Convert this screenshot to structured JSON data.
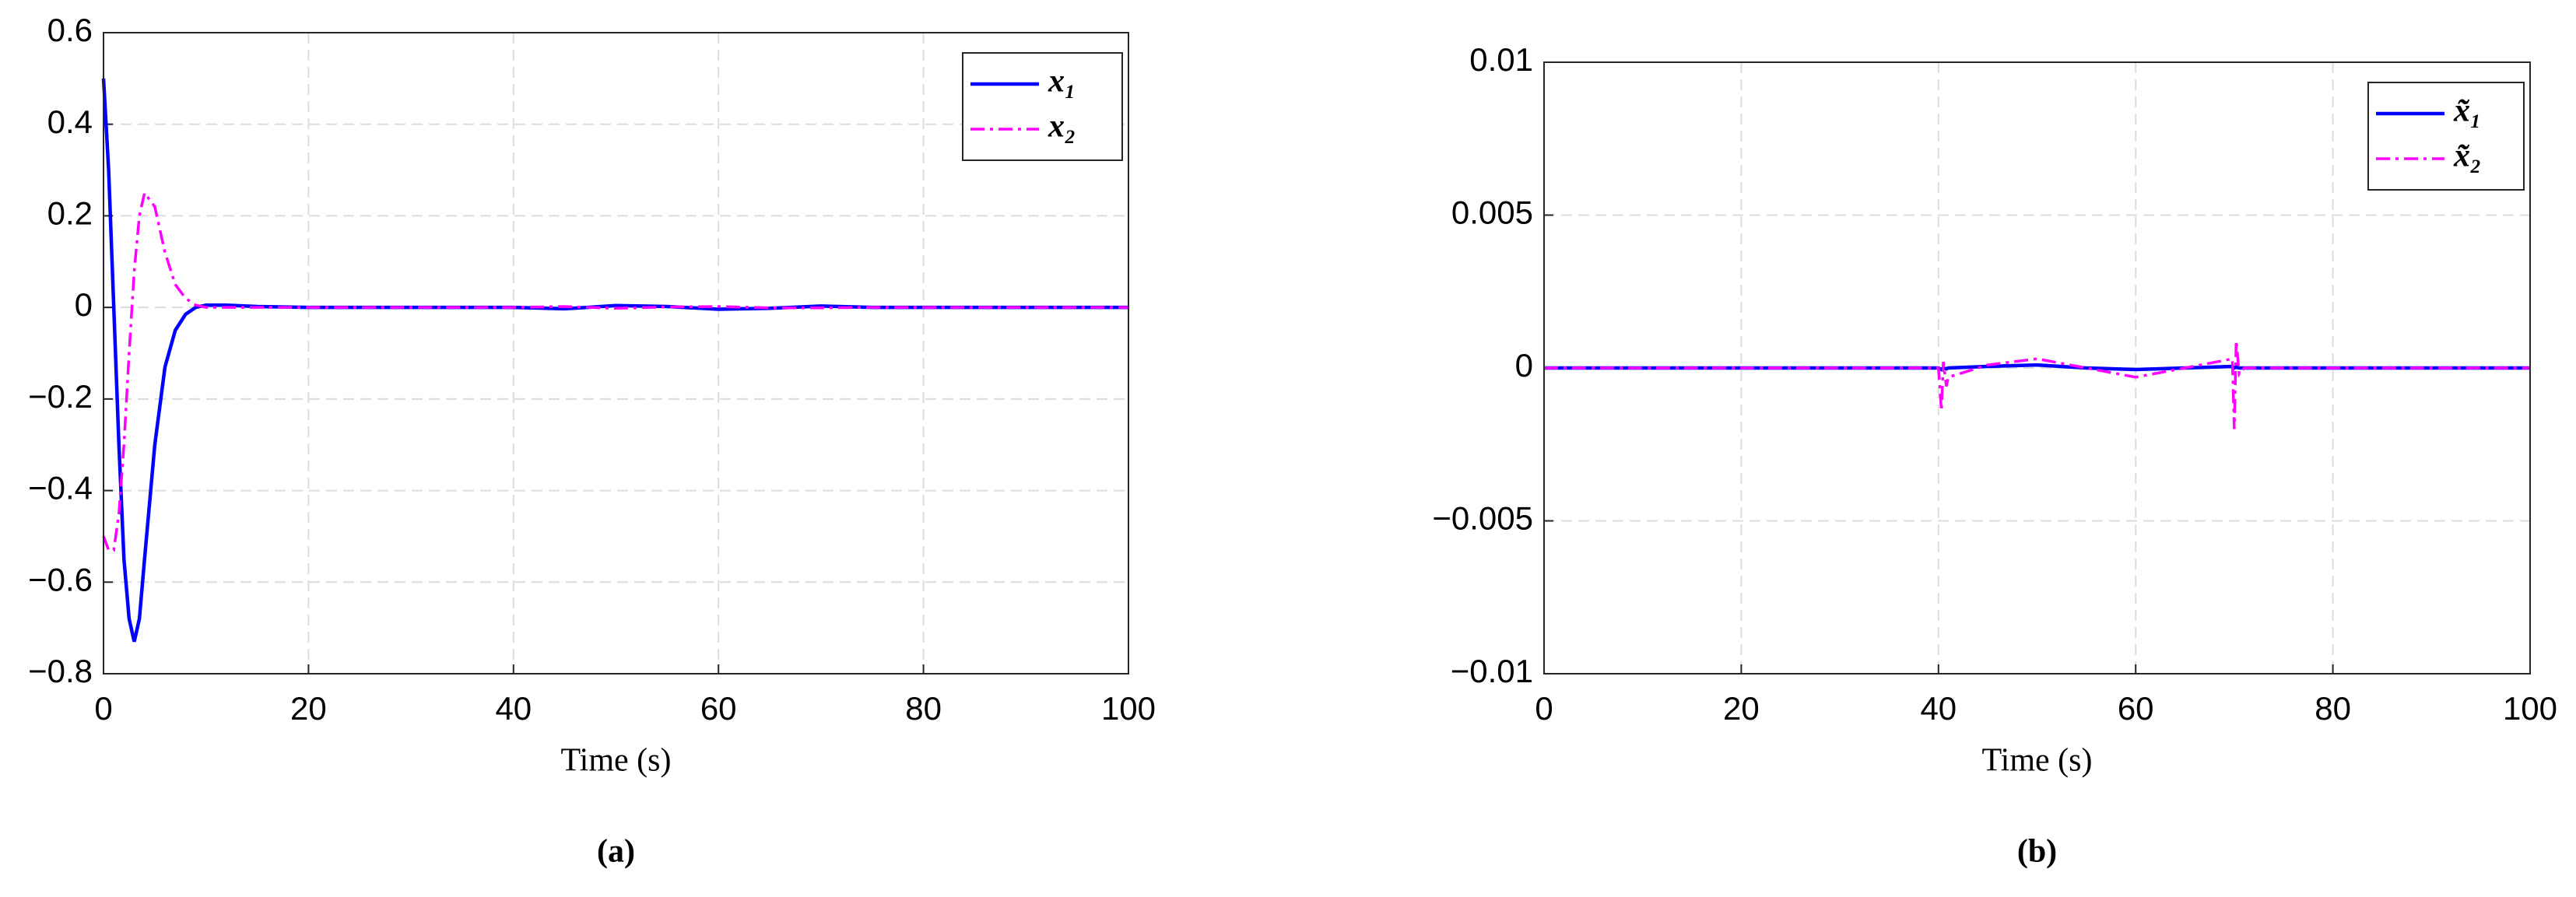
{
  "chart_data": [
    {
      "type": "line",
      "panel_label": "(a)",
      "x_label": "Time (s)",
      "legend_loc": "upper right",
      "grid": true,
      "x": [
        0,
        0.5,
        1,
        1.5,
        2,
        2.5,
        3,
        3.5,
        4,
        5,
        6,
        7,
        8,
        9,
        10,
        12,
        15,
        20,
        30,
        40,
        45,
        50,
        55,
        60,
        65,
        70,
        75,
        80,
        90,
        100
      ],
      "series": [
        {
          "name": "x₁",
          "color": "#0000ff",
          "linestyle": "solid",
          "values": [
            0.5,
            0.3,
            0.0,
            -0.3,
            -0.55,
            -0.68,
            -0.73,
            -0.68,
            -0.55,
            -0.3,
            -0.13,
            -0.05,
            -0.015,
            0,
            0.005,
            0.005,
            0.002,
            0,
            0,
            0,
            -0.003,
            0.004,
            0.002,
            -0.004,
            -0.002,
            0.003,
            0,
            0,
            0,
            0
          ]
        },
        {
          "name": "x₂",
          "color": "#ff00ff",
          "linestyle": "dashdot",
          "values": [
            -0.5,
            -0.53,
            -0.53,
            -0.45,
            -0.3,
            -0.1,
            0.08,
            0.2,
            0.25,
            0.22,
            0.12,
            0.05,
            0.02,
            0.005,
            0,
            0,
            0,
            0,
            0,
            0,
            0.002,
            -0.002,
            0.001,
            0.002,
            -0.001,
            -0.001,
            0,
            0,
            0,
            0
          ]
        }
      ],
      "xlim": [
        0,
        100
      ],
      "xticks": [
        0,
        20,
        40,
        60,
        80,
        100
      ],
      "ylim": [
        -0.8,
        0.6
      ],
      "yticks": [
        {
          "value": -0.8,
          "label": "−0.8"
        },
        {
          "value": -0.6,
          "label": "−0.6"
        },
        {
          "value": -0.4,
          "label": "−0.4"
        },
        {
          "value": -0.2,
          "label": "−0.2"
        },
        0,
        0.2,
        0.4,
        0.6
      ]
    },
    {
      "type": "line",
      "panel_label": "(b)",
      "x_label": "Time (s)",
      "legend_loc": "upper right",
      "grid": true,
      "x": [
        0,
        10,
        20,
        30,
        40,
        40.3,
        40.5,
        40.8,
        41,
        45,
        50,
        55,
        60,
        65,
        69.8,
        70,
        70.2,
        70.5,
        71,
        80,
        90,
        100
      ],
      "series": [
        {
          "name": "x̃₁",
          "color": "#0000ff",
          "linestyle": "solid",
          "values": [
            0,
            0,
            0,
            0,
            0,
            -5e-05,
            0,
            -3e-05,
            0,
            5e-05,
            0.0001,
            0,
            -5e-05,
            0,
            5e-05,
            0,
            3e-05,
            0,
            0,
            0,
            0,
            0
          ]
        },
        {
          "name": "x̃₂",
          "color": "#ff00ff",
          "linestyle": "dashdot",
          "values": [
            0,
            0,
            0,
            0,
            0,
            -0.0014,
            0.0002,
            -0.0006,
            -0.0003,
            0.0001,
            0.0003,
            0,
            -0.0003,
            0,
            0.0003,
            -0.002,
            0.0009,
            -0.0002,
            0,
            0,
            0,
            0
          ]
        }
      ],
      "xlim": [
        0,
        100
      ],
      "xticks": [
        0,
        20,
        40,
        60,
        80,
        100
      ],
      "ylim": [
        -0.01,
        0.01
      ],
      "yticks": [
        {
          "value": -0.01,
          "label": "−0.01"
        },
        {
          "value": -0.005,
          "label": "−0.005"
        },
        0,
        0.005,
        0.01
      ]
    }
  ]
}
